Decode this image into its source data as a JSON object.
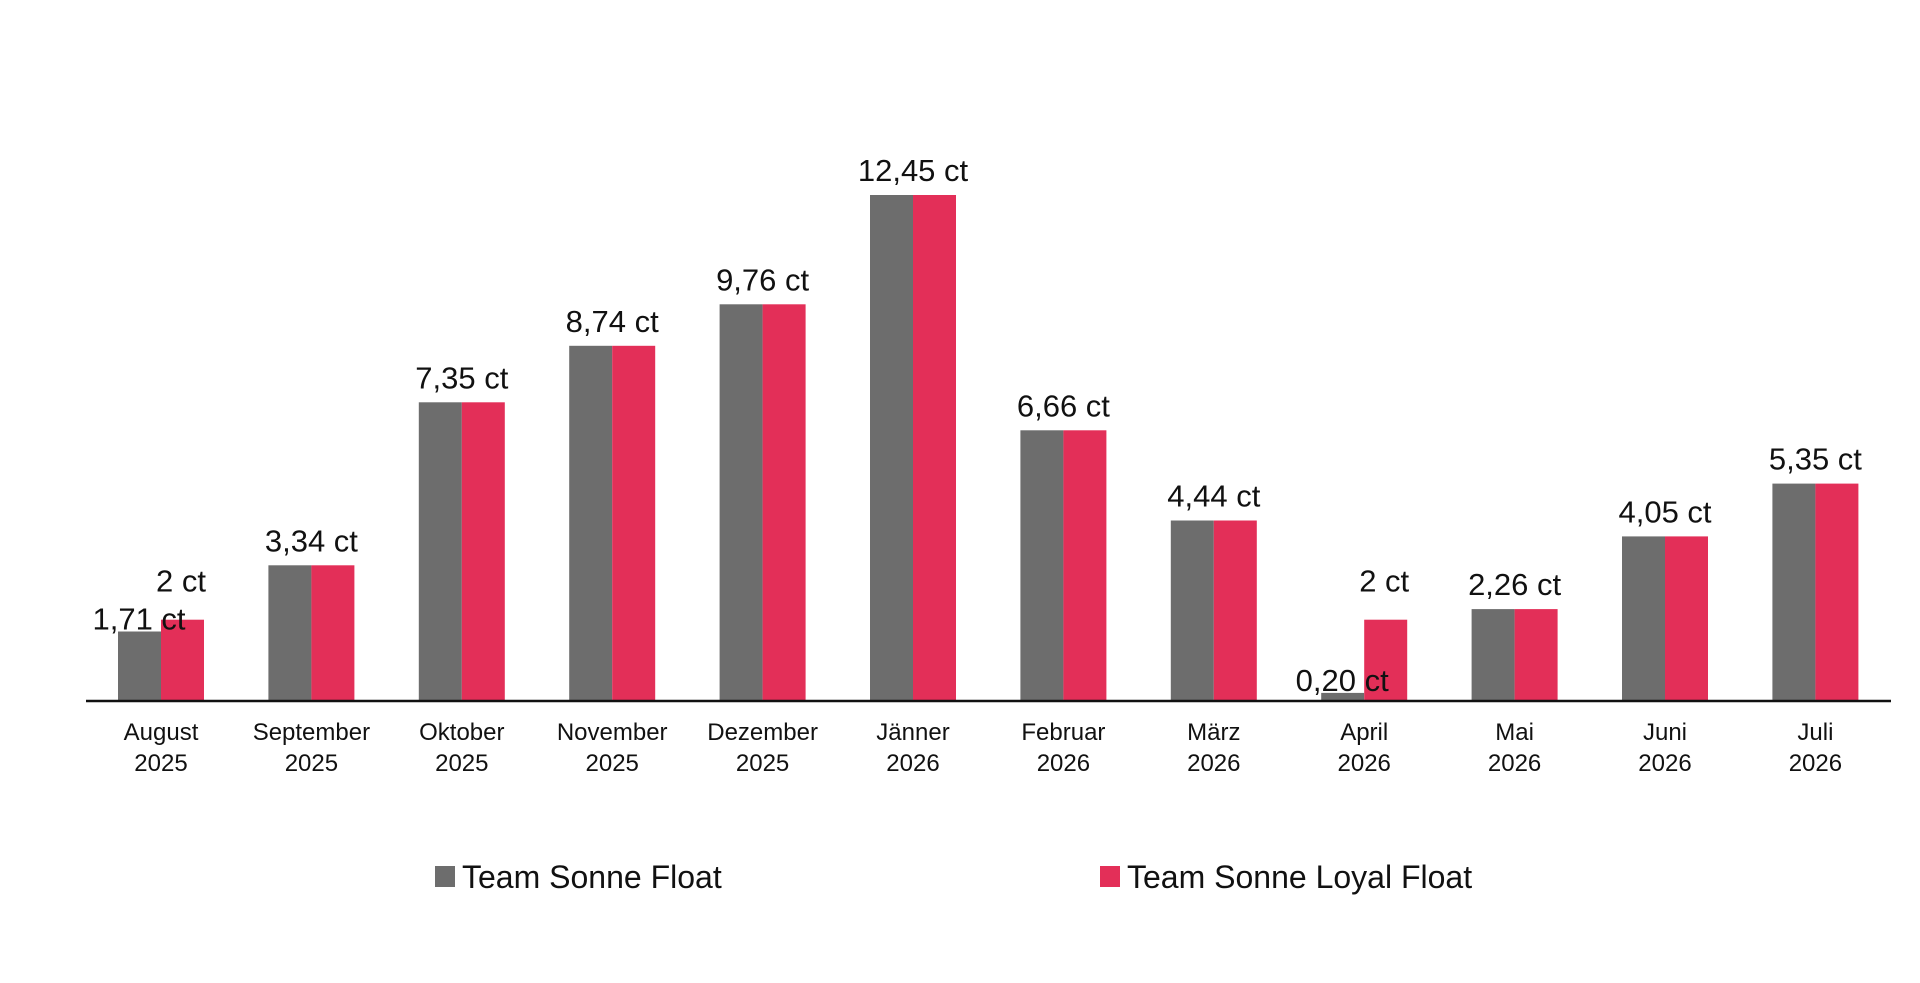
{
  "chart_data": {
    "type": "bar",
    "title": "",
    "xlabel": "",
    "ylabel": "",
    "categories": [
      [
        "August",
        "2025"
      ],
      [
        "September",
        "2025"
      ],
      [
        "Oktober",
        "2025"
      ],
      [
        "November",
        "2025"
      ],
      [
        "Dezember",
        "2025"
      ],
      [
        "Jänner",
        "2026"
      ],
      [
        "Februar",
        "2026"
      ],
      [
        "März",
        "2026"
      ],
      [
        "April",
        "2026"
      ],
      [
        "Mai",
        "2026"
      ],
      [
        "Juni",
        "2026"
      ],
      [
        "Juli",
        "2026"
      ]
    ],
    "series": [
      {
        "name": "Team Sonne Float",
        "color": "#6d6d6d",
        "values": [
          1.71,
          3.34,
          7.35,
          8.74,
          9.76,
          12.45,
          6.66,
          4.44,
          0.2,
          2.26,
          4.05,
          5.35
        ],
        "labels": [
          "1,71 ct",
          "3,34 ct",
          "7,35 ct",
          "8,74 ct",
          "9,76 ct",
          "12,45 ct",
          "6,66 ct",
          "4,44 ct",
          "0,20 ct",
          "2,26 ct",
          "4,05 ct",
          "5,35 ct"
        ]
      },
      {
        "name": "Team Sonne Loyal Float",
        "color": "#e32f58",
        "values": [
          2,
          3.34,
          7.35,
          8.74,
          9.76,
          12.45,
          6.66,
          4.44,
          2,
          2.26,
          4.05,
          5.35
        ],
        "labels": [
          "2 ct",
          "",
          "",
          "",
          "",
          "",
          "",
          "",
          "2 ct",
          "",
          "",
          ""
        ]
      }
    ],
    "ylim": [
      0,
      12.45
    ],
    "grid": false,
    "legend_position": "bottom"
  }
}
